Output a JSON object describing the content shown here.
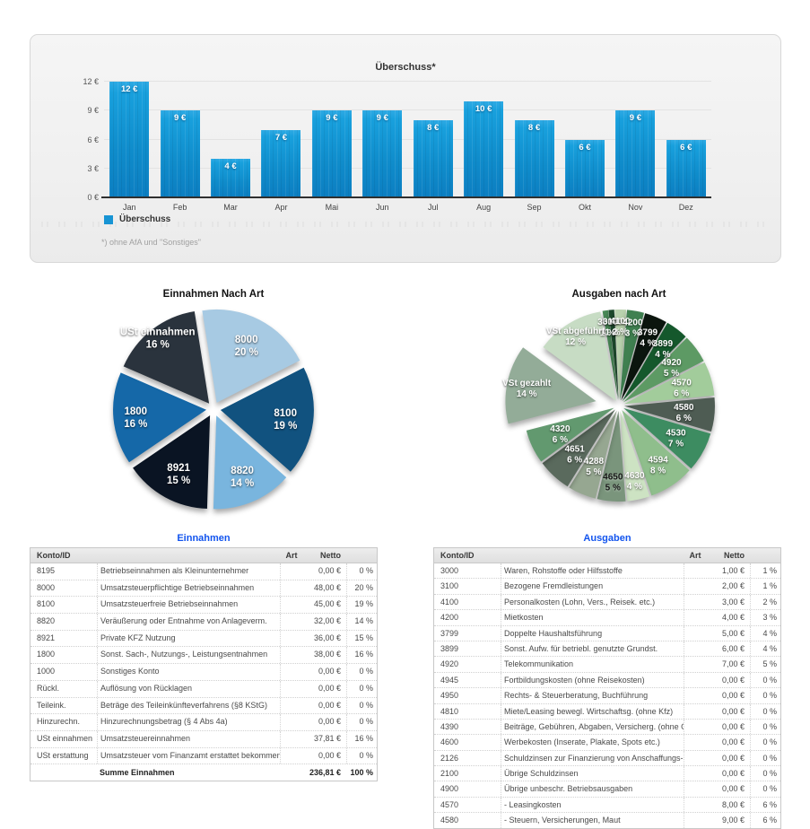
{
  "chart_data": [
    {
      "type": "bar",
      "title": "Überschuss*",
      "categories": [
        "Jan",
        "Feb",
        "Mar",
        "Apr",
        "Mai",
        "Jun",
        "Jul",
        "Aug",
        "Sep",
        "Okt",
        "Nov",
        "Dez"
      ],
      "values": [
        12,
        9,
        4,
        7,
        9,
        9,
        8,
        10,
        8,
        6,
        9,
        6
      ],
      "bar_labels": [
        "12 €",
        "9 €",
        "4 €",
        "7 €",
        "9 €",
        "9 €",
        "8 €",
        "10 €",
        "8 €",
        "6 €",
        "9 €",
        "6 €"
      ],
      "xlabel": "",
      "ylabel": "",
      "ylim": [
        0,
        12.6
      ],
      "grid": true,
      "y_ticks": [
        {
          "v": 0,
          "label": "0 €"
        },
        {
          "v": 3,
          "label": "3 €"
        },
        {
          "v": 6,
          "label": "6 €"
        },
        {
          "v": 9,
          "label": "9 €"
        },
        {
          "v": 12,
          "label": "12 €"
        }
      ],
      "bar_color": "#1794d4",
      "legend_position": "bottom-left",
      "legend": [
        {
          "label": "Überschuss",
          "color": "#1794d4"
        }
      ],
      "footnote": "*) ohne AfA und \"Sonstiges\""
    },
    {
      "type": "pie",
      "title": "Einnahmen Nach Art",
      "slices": [
        {
          "label": "8000",
          "pct": 20,
          "color": "#a7cae3"
        },
        {
          "label": "8100",
          "pct": 19,
          "color": "#11527f"
        },
        {
          "label": "8820",
          "pct": 14,
          "color": "#79b5de"
        },
        {
          "label": "8921",
          "pct": 15,
          "color": "#0a1423"
        },
        {
          "label": "1800",
          "pct": 16,
          "color": "#1568a8",
          "label_r": 0.76
        },
        {
          "label": "USt einnahmen",
          "pct": 16,
          "color": "#2a333d",
          "label_r": 0.9
        }
      ]
    },
    {
      "type": "pie",
      "title": "Ausgaben nach Art",
      "slices": [
        {
          "label": "3000",
          "pct": 1,
          "color": "#4a8a58",
          "label_r": 0.82
        },
        {
          "label": "3100",
          "pct": 1,
          "color": "#1d4a2c",
          "label_r": 0.82
        },
        {
          "label": "4100",
          "pct": 2,
          "color": "#b9d2ae",
          "label_r": 0.82
        },
        {
          "label": "4200",
          "pct": 3,
          "color": "#3f8050",
          "label_r": 0.82
        },
        {
          "label": "3799",
          "pct": 4,
          "color": "#0b150e",
          "label_r": 0.76
        },
        {
          "label": "3899",
          "pct": 4,
          "color": "#15582c",
          "label_r": 0.74
        },
        {
          "label": "4920",
          "pct": 5,
          "color": "#5d9a64"
        },
        {
          "label": "4570",
          "pct": 6,
          "color": "#a2cc9b"
        },
        {
          "label": "4580",
          "pct": 6,
          "color": "#4e5c53"
        },
        {
          "label": "4530",
          "pct": 7,
          "color": "#3d8c61"
        },
        {
          "label": "4594",
          "pct": 8,
          "color": "#8fbe8c",
          "label_r": 0.72
        },
        {
          "label": "4630",
          "pct": 4,
          "color": "#cde3c3",
          "label_r": 0.78
        },
        {
          "label": "4650",
          "pct": 5,
          "color": "#7a957c",
          "label_r": 0.78,
          "dark_label": true
        },
        {
          "label": "4288",
          "pct": 5,
          "color": "#96a791"
        },
        {
          "label": "4651",
          "pct": 6,
          "color": "#5a6a5d"
        },
        {
          "label": "4320",
          "pct": 6,
          "color": "#62996f"
        },
        {
          "label": "VSt gezahlt",
          "pct": 14,
          "color": "#93ac98",
          "exploded": true,
          "label_r": 0.78
        },
        {
          "label": "VSt abgeführt",
          "pct": 12,
          "color": "#c7dcc4",
          "label_r": 0.85
        }
      ]
    }
  ],
  "tables": {
    "einnahmen": {
      "title": "Einnahmen",
      "headers": [
        "Konto/ID",
        "",
        "Art",
        "Netto",
        ""
      ],
      "rows": [
        [
          "8195",
          "Betriebseinnahmen als Kleinunternehmer",
          "",
          "0,00 €",
          "0 %"
        ],
        [
          "8000",
          "Umsatzsteuerpflichtige Betriebseinnahmen",
          "",
          "48,00 €",
          "20 %"
        ],
        [
          "8100",
          "Umsatzsteuerfreie Betriebseinnahmen",
          "",
          "45,00 €",
          "19 %"
        ],
        [
          "8820",
          "Veräußerung oder Entnahme von Anlageverm.",
          "",
          "32,00 €",
          "14 %"
        ],
        [
          "8921",
          "Private KFZ Nutzung",
          "",
          "36,00 €",
          "15 %"
        ],
        [
          "1800",
          "Sonst. Sach-, Nutzungs-, Leistungsentnahmen",
          "",
          "38,00 €",
          "16 %"
        ],
        [
          "1000",
          "Sonstiges Konto",
          "",
          "0,00 €",
          "0 %"
        ],
        [
          "Rückl.",
          "Auflösung von Rücklagen",
          "",
          "0,00 €",
          "0 %"
        ],
        [
          "Teileink.",
          "Beträge des Teileinkünfteverfahrens (§8 KStG)",
          "",
          "0,00 €",
          "0 %"
        ],
        [
          "Hinzurechn.",
          "Hinzurechnungsbetrag (§ 4 Abs 4a)",
          "",
          "0,00 €",
          "0 %"
        ],
        [
          "USt einnahmen",
          "Umsatzsteuereinnahmen",
          "",
          "37,81 €",
          "16 %"
        ],
        [
          "USt erstattung",
          "Umsatzsteuer vom Finanzamt erstattet bekommen",
          "",
          "0,00 €",
          "0 %"
        ]
      ],
      "total_row": [
        "",
        "Summe Einnahmen",
        "",
        "236,81 €",
        "100 %"
      ]
    },
    "ausgaben": {
      "title": "Ausgaben",
      "headers": [
        "Konto/ID",
        "",
        "Art",
        "Netto",
        ""
      ],
      "rows": [
        [
          "3000",
          "Waren, Rohstoffe oder Hilfsstoffe",
          "",
          "1,00 €",
          "1 %"
        ],
        [
          "3100",
          "Bezogene Fremdleistungen",
          "",
          "2,00 €",
          "1 %"
        ],
        [
          "4100",
          "Personalkosten (Lohn, Vers., Reisek. etc.)",
          "",
          "3,00 €",
          "2 %"
        ],
        [
          "4200",
          "Mietkosten",
          "",
          "4,00 €",
          "3 %"
        ],
        [
          "3799",
          "Doppelte Haushaltsführung",
          "",
          "5,00 €",
          "4 %"
        ],
        [
          "3899",
          "Sonst. Aufw. für betriebl. genutzte Grundst.",
          "",
          "6,00 €",
          "4 %"
        ],
        [
          "4920",
          "Telekommunikation",
          "",
          "7,00 €",
          "5 %"
        ],
        [
          "4945",
          "Fortbildungskosten (ohne Reisekosten)",
          "",
          "0,00 €",
          "0 %"
        ],
        [
          "4950",
          "Rechts- & Steuerberatung, Buchführung",
          "",
          "0,00 €",
          "0 %"
        ],
        [
          "4810",
          "Miete/Leasing bewegl. Wirtschaftsg. (ohne Kfz)",
          "",
          "0,00 €",
          "0 %"
        ],
        [
          "4390",
          "Beiträge, Gebühren, Abgaben, Versicherg. (ohne Gebäude)",
          "",
          "0,00 €",
          "0 %"
        ],
        [
          "4600",
          "Werbekosten (Inserate, Plakate, Spots etc.)",
          "",
          "0,00 €",
          "0 %"
        ],
        [
          "2126",
          "Schuldzinsen zur Finanzierung von Anschaffungs- und Herst.",
          "",
          "0,00 €",
          "0 %"
        ],
        [
          "2100",
          "Übrige Schuldzinsen",
          "",
          "0,00 €",
          "0 %"
        ],
        [
          "4900",
          "Übrige unbeschr. Betriebsausgaben",
          "",
          "0,00 €",
          "0 %"
        ],
        [
          "4570",
          "-  Leasingkosten",
          "",
          "8,00 €",
          "6 %"
        ],
        [
          "4580",
          "-  Steuern, Versicherungen, Maut",
          "",
          "9,00 €",
          "6 %"
        ]
      ]
    }
  }
}
